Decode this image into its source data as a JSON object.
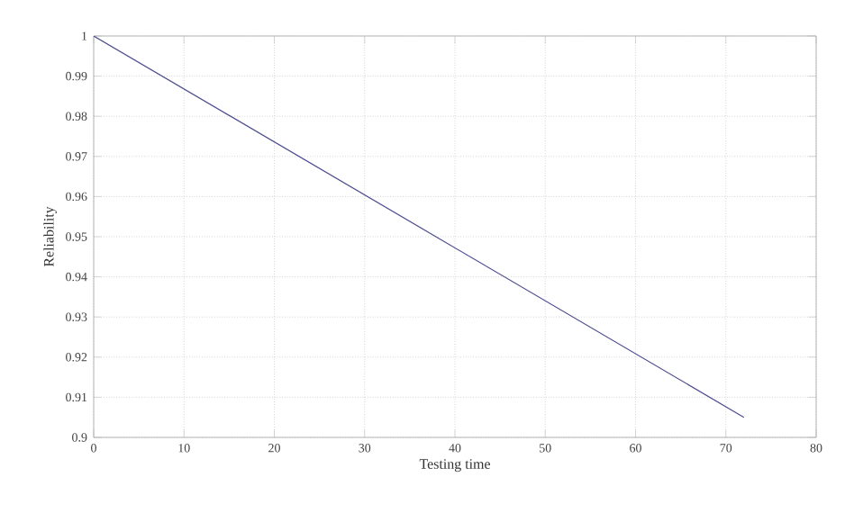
{
  "chart_data": {
    "type": "line",
    "xlabel": "Testing time",
    "ylabel": "Reliability",
    "x": [
      0,
      72
    ],
    "series": [
      {
        "color": "#4b4b8f",
        "values": [
          1.0,
          0.905
        ]
      }
    ],
    "xlim": [
      0,
      80
    ],
    "xticks": [
      0,
      10,
      20,
      30,
      40,
      50,
      60,
      70,
      80
    ],
    "ylim": [
      0.9,
      1
    ],
    "yticks": [
      0.9,
      0.91,
      0.92,
      0.93,
      0.94,
      0.95,
      0.96,
      0.97,
      0.98,
      0.99,
      1
    ],
    "grid": true,
    "line_style": "solid",
    "marker": "none"
  }
}
